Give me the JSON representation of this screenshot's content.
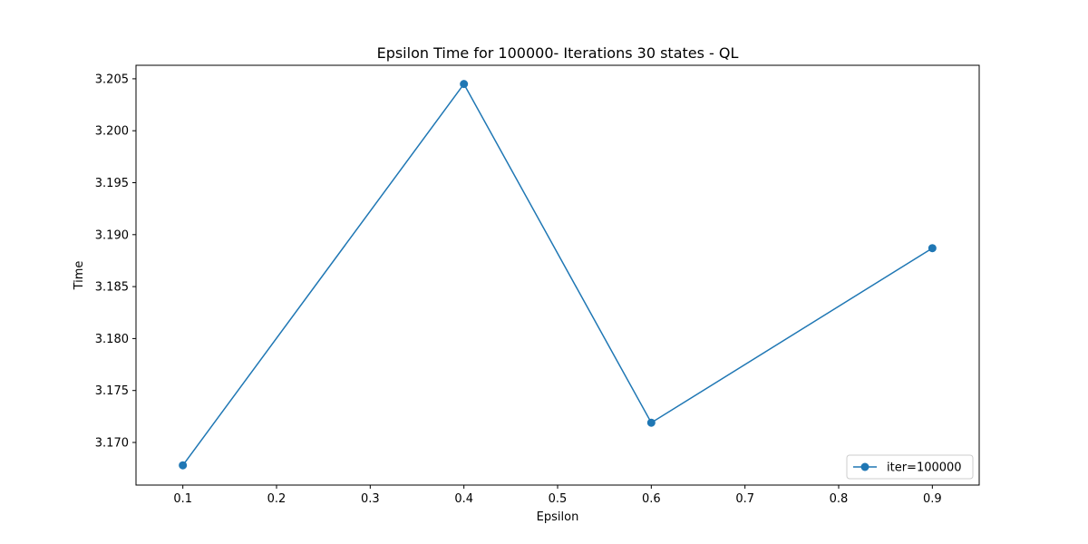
{
  "chart_data": {
    "type": "line",
    "title": "Epsilon Time for 100000- Iterations 30 states - QL",
    "xlabel": "Epsilon",
    "ylabel": "Time",
    "x": [
      0.1,
      0.4,
      0.6,
      0.9
    ],
    "series": [
      {
        "name": "iter=100000",
        "values": [
          3.1678,
          3.2045,
          3.1719,
          3.1887
        ],
        "color": "#1f77b4",
        "marker": "circle"
      }
    ],
    "xlim": [
      0.05,
      0.95
    ],
    "ylim": [
      3.1659,
      3.2063
    ],
    "xticks": [
      0.1,
      0.2,
      0.3,
      0.4,
      0.5,
      0.6,
      0.7,
      0.8,
      0.9
    ],
    "xtick_labels": [
      "0.1",
      "0.2",
      "0.3",
      "0.4",
      "0.5",
      "0.6",
      "0.7",
      "0.8",
      "0.9"
    ],
    "yticks": [
      3.17,
      3.175,
      3.18,
      3.185,
      3.19,
      3.195,
      3.2,
      3.205
    ],
    "ytick_labels": [
      "3.170",
      "3.175",
      "3.180",
      "3.185",
      "3.190",
      "3.195",
      "3.200",
      "3.205"
    ],
    "grid": false,
    "legend": "lower-right"
  }
}
